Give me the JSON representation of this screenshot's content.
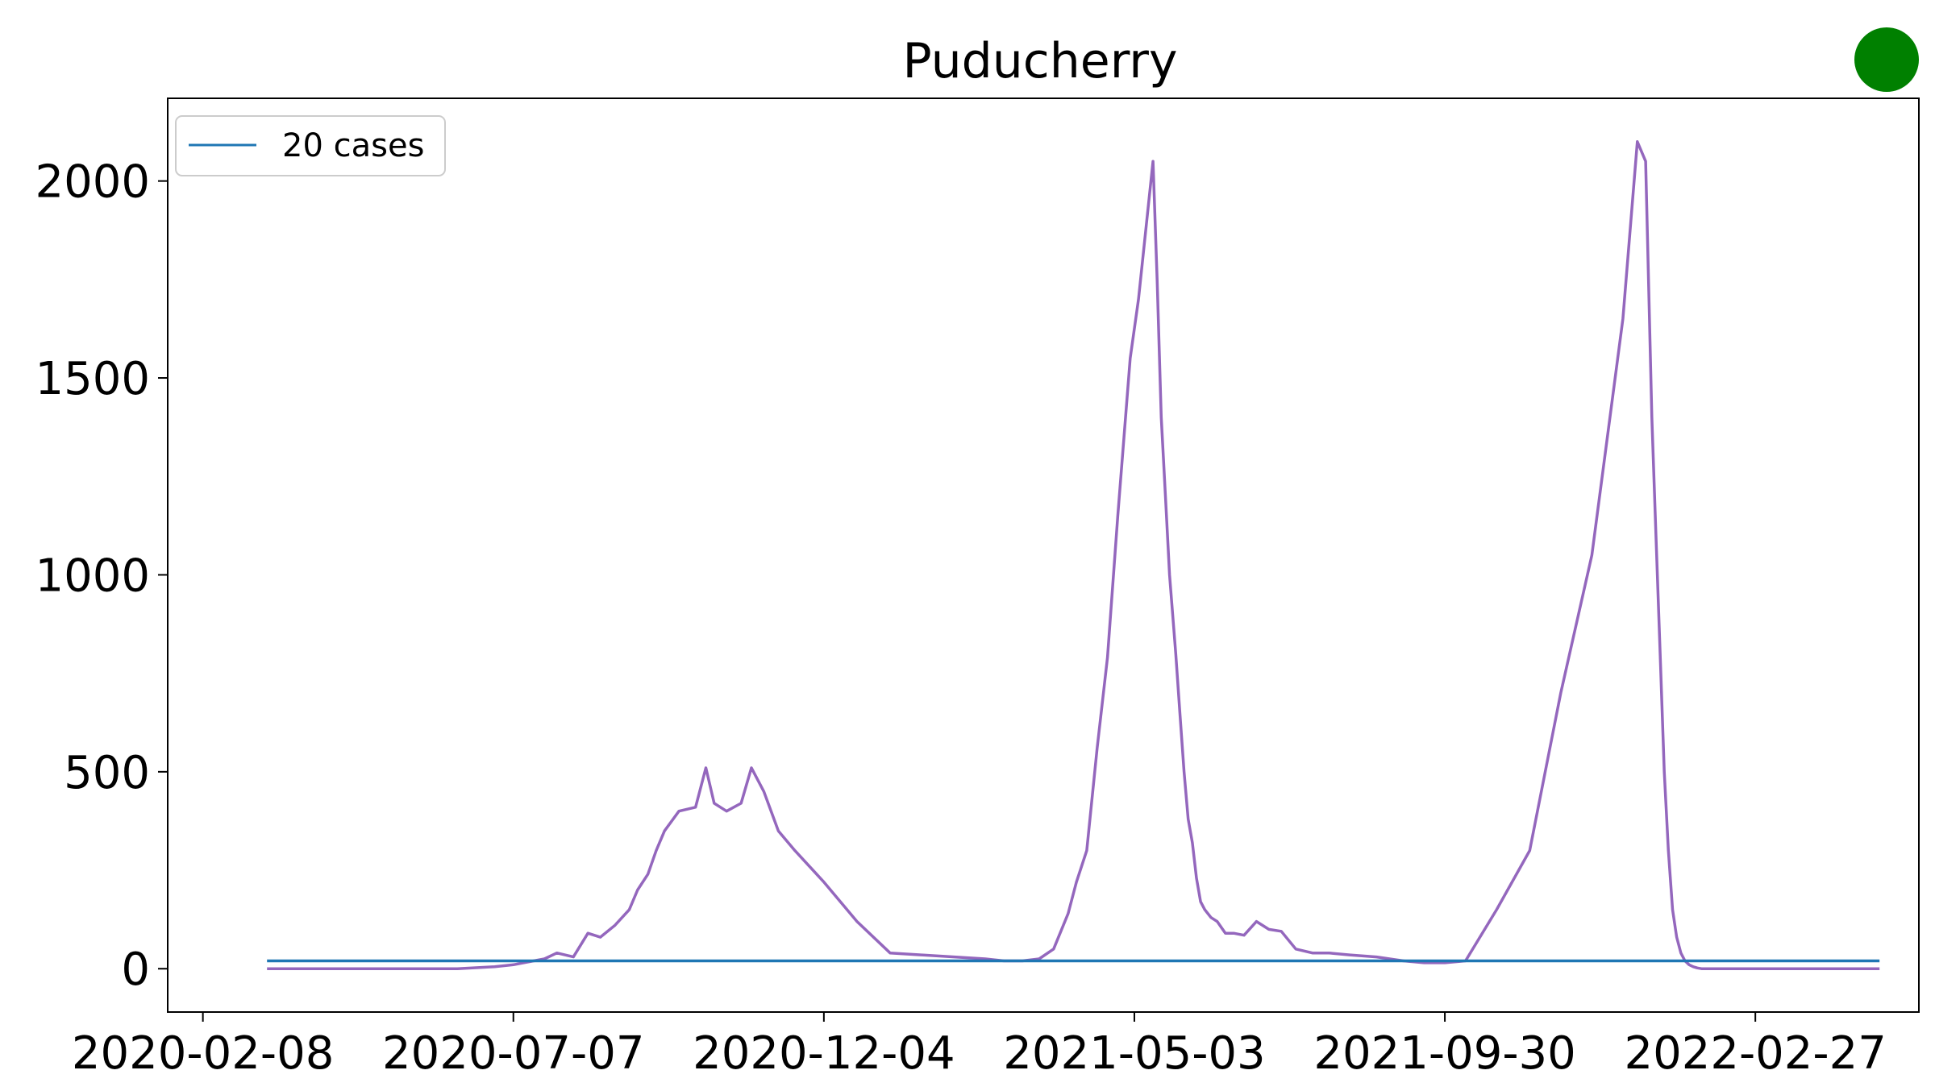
{
  "chart_data": {
    "type": "line",
    "title": "Puducherry",
    "xlabel": "",
    "ylabel": "",
    "x_ticks": [
      "2020-02-08",
      "2020-07-07",
      "2020-12-04",
      "2021-05-03",
      "2021-09-30",
      "2022-02-27"
    ],
    "xlim": [
      "2020-01-22",
      "2022-05-17"
    ],
    "ylim": [
      -110,
      2210
    ],
    "y_ticks": [
      0,
      500,
      1000,
      1500,
      2000
    ],
    "grid": false,
    "legend": {
      "placement": "top-left",
      "entries": [
        "20 cases"
      ]
    },
    "status_indicator": {
      "shape": "circle",
      "color": "#008000"
    },
    "series": [
      {
        "color": "#9467bd",
        "x": [
          "2020-03-10",
          "2020-05-10",
          "2020-06-10",
          "2020-06-28",
          "2020-07-07",
          "2020-07-15",
          "2020-07-22",
          "2020-07-28",
          "2020-08-05",
          "2020-08-12",
          "2020-08-18",
          "2020-08-25",
          "2020-09-01",
          "2020-09-05",
          "2020-09-10",
          "2020-09-14",
          "2020-09-18",
          "2020-09-25",
          "2020-10-03",
          "2020-10-08",
          "2020-10-12",
          "2020-10-18",
          "2020-10-25",
          "2020-10-30",
          "2020-11-05",
          "2020-11-12",
          "2020-11-20",
          "2020-12-04",
          "2020-12-20",
          "2021-01-05",
          "2021-01-20",
          "2021-02-05",
          "2021-02-20",
          "2021-03-01",
          "2021-03-10",
          "2021-03-18",
          "2021-03-25",
          "2021-04-01",
          "2021-04-05",
          "2021-04-10",
          "2021-04-15",
          "2021-04-20",
          "2021-04-25",
          "2021-05-01",
          "2021-05-05",
          "2021-05-08",
          "2021-05-12",
          "2021-05-14",
          "2021-05-16",
          "2021-05-18",
          "2021-05-20",
          "2021-05-23",
          "2021-05-25",
          "2021-05-27",
          "2021-05-29",
          "2021-05-31",
          "2021-06-02",
          "2021-06-04",
          "2021-06-06",
          "2021-06-09",
          "2021-06-12",
          "2021-06-16",
          "2021-06-20",
          "2021-06-25",
          "2021-07-01",
          "2021-07-07",
          "2021-07-13",
          "2021-07-20",
          "2021-07-28",
          "2021-08-05",
          "2021-08-15",
          "2021-08-28",
          "2021-09-10",
          "2021-09-20",
          "2021-09-25",
          "2021-09-30",
          "2021-10-10",
          "2021-10-25",
          "2021-11-10",
          "2021-11-25",
          "2021-12-10",
          "2021-12-25",
          "2022-01-01",
          "2022-01-05",
          "2022-01-08",
          "2022-01-10",
          "2022-01-12",
          "2022-01-14",
          "2022-01-16",
          "2022-01-18",
          "2022-01-20",
          "2022-01-22",
          "2022-01-24",
          "2022-01-26",
          "2022-01-28",
          "2022-01-30",
          "2022-02-01",
          "2022-02-04",
          "2022-02-07",
          "2022-02-11",
          "2022-02-16",
          "2022-02-22",
          "2022-02-27",
          "2022-03-10",
          "2022-04-05",
          "2022-04-28"
        ],
        "y": [
          0,
          0,
          0,
          5,
          10,
          18,
          25,
          40,
          30,
          90,
          80,
          110,
          150,
          200,
          240,
          300,
          350,
          400,
          410,
          510,
          420,
          400,
          420,
          510,
          450,
          350,
          300,
          220,
          120,
          40,
          35,
          30,
          25,
          20,
          20,
          25,
          50,
          140,
          220,
          300,
          560,
          790,
          1150,
          1550,
          1700,
          1850,
          2050,
          1750,
          1400,
          1200,
          1000,
          800,
          650,
          500,
          380,
          320,
          230,
          170,
          150,
          130,
          120,
          90,
          90,
          85,
          120,
          100,
          95,
          50,
          40,
          40,
          35,
          30,
          20,
          15,
          15,
          15,
          20,
          150,
          300,
          700,
          1050,
          1650,
          2100,
          2050,
          1400,
          1100,
          800,
          500,
          300,
          150,
          80,
          40,
          20,
          10,
          5,
          2,
          0,
          0,
          0,
          0,
          0,
          0,
          0,
          0,
          0,
          0
        ]
      },
      {
        "name": "20 cases",
        "color": "#1f77b4",
        "x": [
          "2020-03-10",
          "2022-04-28"
        ],
        "y": [
          20,
          20
        ]
      }
    ]
  }
}
